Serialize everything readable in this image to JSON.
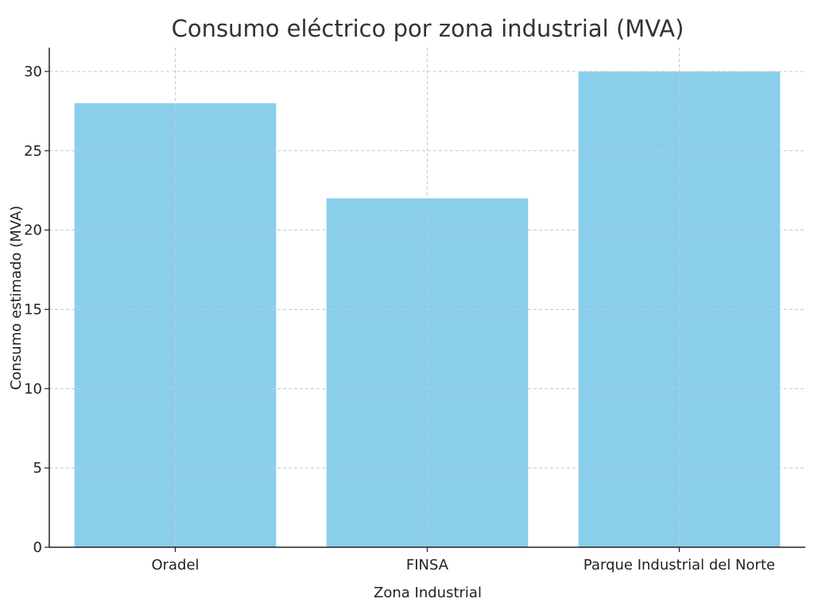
{
  "chart_data": {
    "type": "bar",
    "title": "Consumo eléctrico por zona industrial (MVA)",
    "xlabel": "Zona Industrial",
    "ylabel": "Consumo estimado (MVA)",
    "categories": [
      "Oradel",
      "FINSA",
      "Parque Industrial del Norte"
    ],
    "values": [
      28,
      22,
      30
    ],
    "ylim": [
      0,
      31.5
    ],
    "yticks": [
      0,
      5,
      10,
      15,
      20,
      25,
      30
    ],
    "grid": true,
    "bar_color": "#89ceeb"
  }
}
